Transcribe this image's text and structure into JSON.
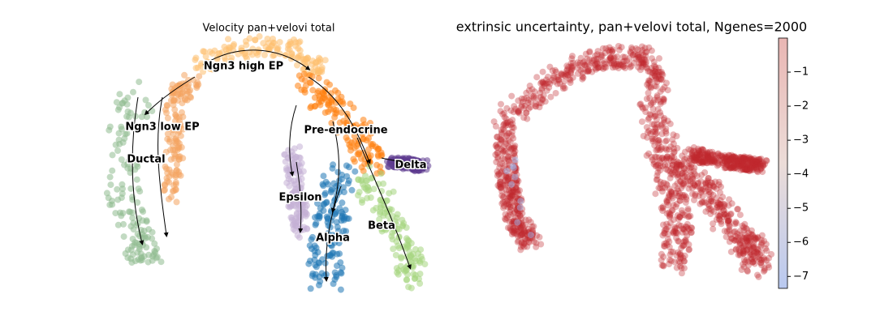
{
  "panels": [
    {
      "title": "Velocity pan+velovi total",
      "clusters": [
        {
          "label": "Ngn3 high EP",
          "color": "#fdbf6f"
        },
        {
          "label": "Ngn3 low EP",
          "color": "#f4a460"
        },
        {
          "label": "Ductal",
          "color": "#8fbc8f"
        },
        {
          "label": "Pre-endocrine",
          "color": "#ff7f0e"
        },
        {
          "label": "Delta",
          "color": "#5e3c8f"
        },
        {
          "label": "Epsilon",
          "color": "#c5b0d5"
        },
        {
          "label": "Alpha",
          "color": "#1f77b4"
        },
        {
          "label": "Beta",
          "color": "#a6d67f"
        }
      ]
    },
    {
      "title": "extrinsic uncertainty, pan+velovi total, Ngenes=2000",
      "color": "#c0282f",
      "colorbar": {
        "lim": [
          -7.35,
          0
        ],
        "ticks": [
          {
            "value": -1,
            "label": "−1"
          },
          {
            "value": -2,
            "label": "−2"
          },
          {
            "value": -3,
            "label": "−3"
          },
          {
            "value": -4,
            "label": "−4"
          },
          {
            "value": -5,
            "label": "−5"
          },
          {
            "value": -6,
            "label": "−6"
          },
          {
            "value": -7,
            "label": "−7"
          }
        ]
      }
    }
  ]
}
